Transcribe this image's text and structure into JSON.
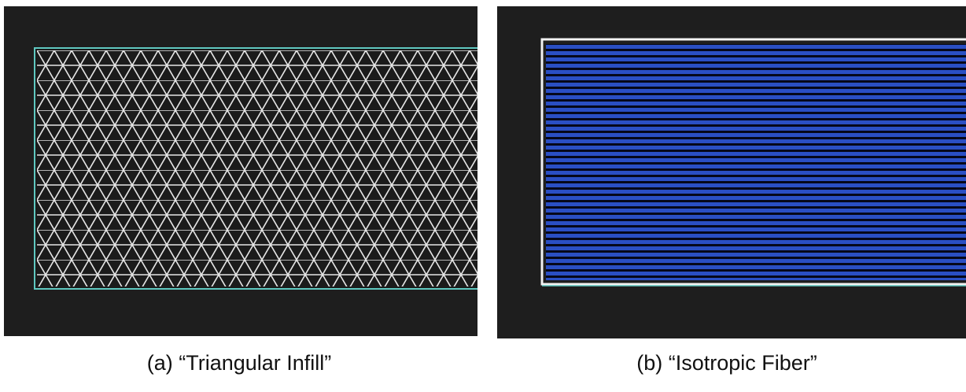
{
  "panels": [
    {
      "caption": "(a) “Triangular Infill”"
    },
    {
      "caption": "(b) “Isotropic Fiber”"
    }
  ]
}
